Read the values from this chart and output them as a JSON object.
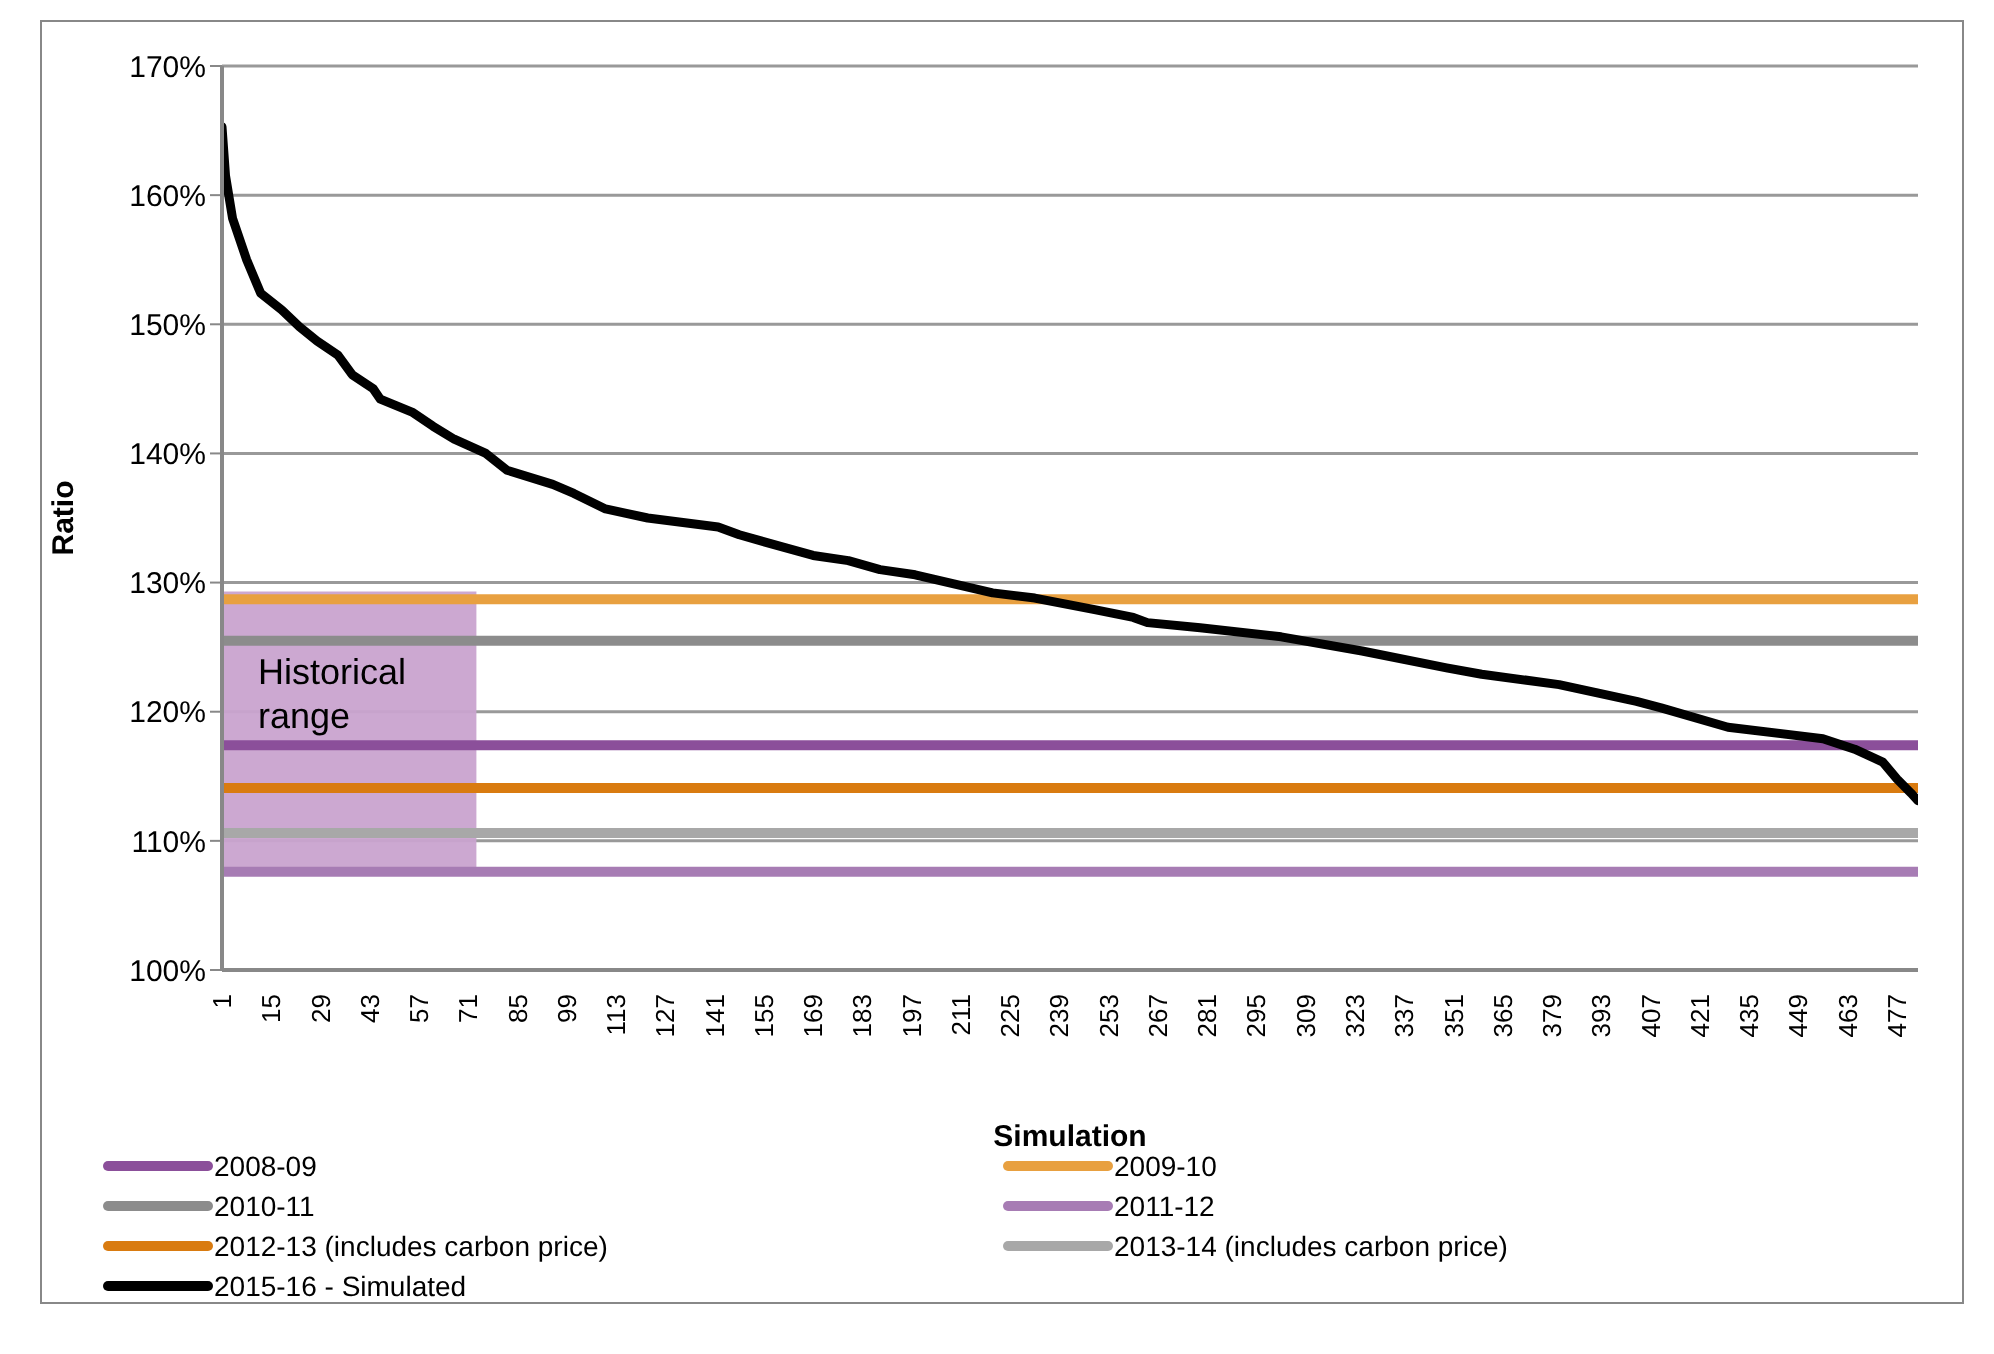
{
  "chart_data": {
    "type": "line",
    "xlabel": "Simulation",
    "ylabel": "Ratio",
    "xlim": [
      1,
      483
    ],
    "xticks": [
      1,
      15,
      29,
      43,
      57,
      71,
      85,
      99,
      113,
      127,
      141,
      155,
      169,
      183,
      197,
      211,
      225,
      239,
      253,
      267,
      281,
      295,
      309,
      323,
      337,
      351,
      365,
      379,
      393,
      407,
      421,
      435,
      449,
      463,
      477
    ],
    "ylim": [
      100,
      170
    ],
    "yticks": [
      {
        "value": 100,
        "label": "100%"
      },
      {
        "value": 110,
        "label": "110%"
      },
      {
        "value": 120,
        "label": "120%"
      },
      {
        "value": 130,
        "label": "130%"
      },
      {
        "value": 140,
        "label": "140%"
      },
      {
        "value": 150,
        "label": "150%"
      },
      {
        "value": 160,
        "label": "160%"
      },
      {
        "value": 170,
        "label": "170%"
      }
    ],
    "grid": "y",
    "legend": "bottom",
    "marker": "none",
    "line_style": "solid",
    "bands": [
      {
        "axis": "y",
        "from": 107.4,
        "to": 129.3,
        "label": "Historical range",
        "color": "#c9a3cf"
      }
    ],
    "series": [
      {
        "name": "2008-09",
        "color": "#8b4f9a",
        "x": [
          1,
          483
        ],
        "values": [
          117.4,
          117.4
        ]
      },
      {
        "name": "2009-10",
        "color": "#e8a040",
        "x": [
          1,
          483
        ],
        "values": [
          128.7,
          128.7
        ]
      },
      {
        "name": "2010-11",
        "color": "#8c8c8c",
        "x": [
          1,
          483
        ],
        "values": [
          125.5,
          125.5
        ]
      },
      {
        "name": "2011-12",
        "color": "#a77cb4",
        "x": [
          1,
          483
        ],
        "values": [
          107.6,
          107.6
        ]
      },
      {
        "name": "2012-13 (includes carbon price)",
        "color": "#d97b10",
        "x": [
          1,
          483
        ],
        "values": [
          114.1,
          114.1
        ]
      },
      {
        "name": "2013-14 (includes carbon price)",
        "color": "#a8a8a8",
        "x": [
          1,
          483
        ],
        "values": [
          110.6,
          110.6
        ]
      },
      {
        "name": "2015-16 - Simulated",
        "color": "#000000",
        "x": [
          1,
          2,
          4,
          8,
          12,
          18,
          23,
          28,
          34,
          38,
          44,
          46,
          55,
          61,
          67,
          76,
          82,
          95,
          101,
          110,
          122,
          142,
          148,
          161,
          169,
          179,
          188,
          198,
          220,
          232,
          249,
          260,
          264,
          279,
          302,
          325,
          349,
          359,
          381,
          403,
          410,
          429,
          456,
          465,
          473,
          477,
          481,
          483
        ],
        "values": [
          165.3,
          161.5,
          158.2,
          155,
          152.4,
          151.1,
          149.8,
          148.7,
          147.6,
          146.1,
          145,
          144.2,
          143.2,
          142.1,
          141.1,
          140,
          138.7,
          137.6,
          136.9,
          135.7,
          135,
          134.3,
          133.7,
          132.7,
          132.1,
          131.7,
          131,
          130.6,
          129.2,
          128.8,
          127.9,
          127.3,
          126.9,
          126.5,
          125.8,
          124.7,
          123.4,
          122.9,
          122.1,
          120.8,
          120.3,
          118.8,
          117.9,
          117.1,
          116.1,
          114.8,
          113.7,
          113.1
        ]
      }
    ]
  }
}
